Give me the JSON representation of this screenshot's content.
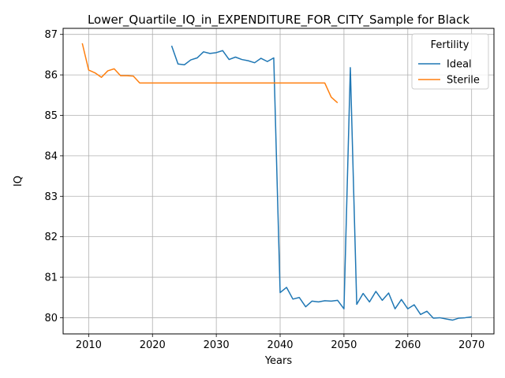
{
  "chart_data": {
    "type": "line",
    "title": "Lower_Quartile_IQ_in_EXPENDITURE_FOR_CITY_Sample for Black",
    "xlabel": "Years",
    "ylabel": "IQ",
    "xlim": [
      2006,
      2073.5
    ],
    "ylim": [
      79.6,
      87.15
    ],
    "xticks": [
      "2010",
      "2020",
      "2030",
      "2040",
      "2050",
      "2060",
      "2070"
    ],
    "yticks": [
      "80",
      "81",
      "82",
      "83",
      "84",
      "85",
      "86",
      "87"
    ],
    "grid": true,
    "legend": {
      "title": "Fertility",
      "placement": "top-right"
    },
    "series": [
      {
        "name": "Ideal",
        "color": "#1f77b4",
        "x": [
          2023,
          2024,
          2025,
          2026,
          2027,
          2028,
          2029,
          2030,
          2031,
          2032,
          2033,
          2034,
          2035,
          2036,
          2037,
          2038,
          2039,
          2040,
          2041,
          2042,
          2043,
          2044,
          2045,
          2046,
          2047,
          2048,
          2049,
          2050,
          2051,
          2052,
          2053,
          2054,
          2055,
          2056,
          2057,
          2058,
          2059,
          2060,
          2061,
          2062,
          2063,
          2064,
          2065,
          2066,
          2067,
          2068,
          2069,
          2070
        ],
        "values": [
          86.72,
          86.27,
          86.25,
          86.37,
          86.42,
          86.57,
          86.53,
          86.55,
          86.6,
          86.38,
          86.44,
          86.38,
          86.35,
          86.3,
          86.41,
          86.33,
          86.42,
          80.62,
          80.75,
          80.46,
          80.5,
          80.27,
          80.41,
          80.39,
          80.42,
          80.41,
          80.43,
          80.22,
          86.18,
          80.33,
          80.6,
          80.39,
          80.65,
          80.43,
          80.61,
          80.22,
          80.45,
          80.22,
          80.32,
          80.08,
          80.16,
          79.99,
          80.0,
          79.97,
          79.94,
          79.99,
          80.0,
          80.02
        ]
      },
      {
        "name": "Sterile",
        "color": "#ff7f0e",
        "x": [
          2009,
          2010,
          2011,
          2012,
          2013,
          2014,
          2015,
          2016,
          2017,
          2018,
          2019,
          2020,
          2021,
          2022,
          2023,
          2024,
          2025,
          2026,
          2027,
          2028,
          2029,
          2030,
          2031,
          2032,
          2033,
          2034,
          2035,
          2036,
          2037,
          2038,
          2039,
          2040,
          2041,
          2042,
          2043,
          2044,
          2045,
          2046,
          2047,
          2048,
          2049
        ],
        "values": [
          86.78,
          86.12,
          86.05,
          85.94,
          86.1,
          86.15,
          85.98,
          85.98,
          85.97,
          85.8,
          85.8,
          85.8,
          85.8,
          85.8,
          85.8,
          85.8,
          85.8,
          85.8,
          85.8,
          85.8,
          85.8,
          85.8,
          85.8,
          85.8,
          85.8,
          85.8,
          85.8,
          85.8,
          85.8,
          85.8,
          85.8,
          85.8,
          85.8,
          85.8,
          85.8,
          85.8,
          85.8,
          85.8,
          85.8,
          85.45,
          85.31
        ]
      }
    ]
  }
}
